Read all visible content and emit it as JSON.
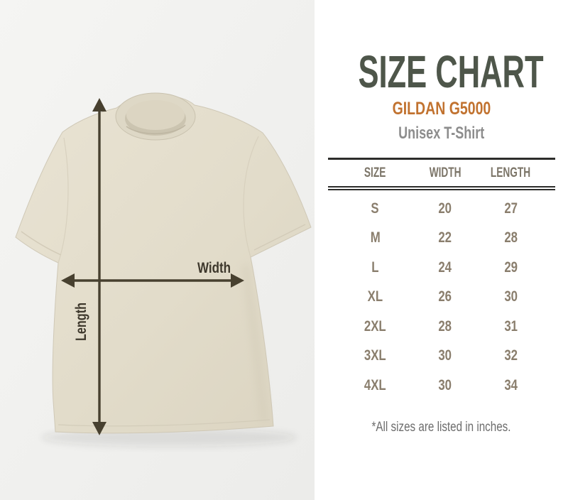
{
  "header": {
    "title": "SIZE CHART",
    "product": "GILDAN G5000",
    "subtitle": "Unisex T-Shirt"
  },
  "diagram": {
    "width_label": "Width",
    "length_label": "Length"
  },
  "chart_data": {
    "type": "table",
    "title": "SIZE CHART",
    "subtitle": "GILDAN G5000 Unisex T-Shirt",
    "columns": [
      "SIZE",
      "WIDTH",
      "LENGTH"
    ],
    "rows": [
      [
        "S",
        20,
        27
      ],
      [
        "M",
        22,
        28
      ],
      [
        "L",
        24,
        29
      ],
      [
        "XL",
        26,
        30
      ],
      [
        "2XL",
        28,
        31
      ],
      [
        "3XL",
        30,
        32
      ],
      [
        "4XL",
        30,
        34
      ]
    ],
    "units": "inches"
  },
  "footnote": "*All sizes are listed in inches.",
  "colors": {
    "title": "#4e564a",
    "brand_orange": "#c1722f",
    "subtitle_gray": "#8d8d8d",
    "table_rule": "#2d2d2b",
    "table_header_text": "#7c7568",
    "table_cell_text": "#8a7e6d",
    "footnote_gray": "#6d6d6d",
    "arrow": "#47402f",
    "shirt_beige": "#e2dcca",
    "photo_background": "#f3f3f1"
  }
}
